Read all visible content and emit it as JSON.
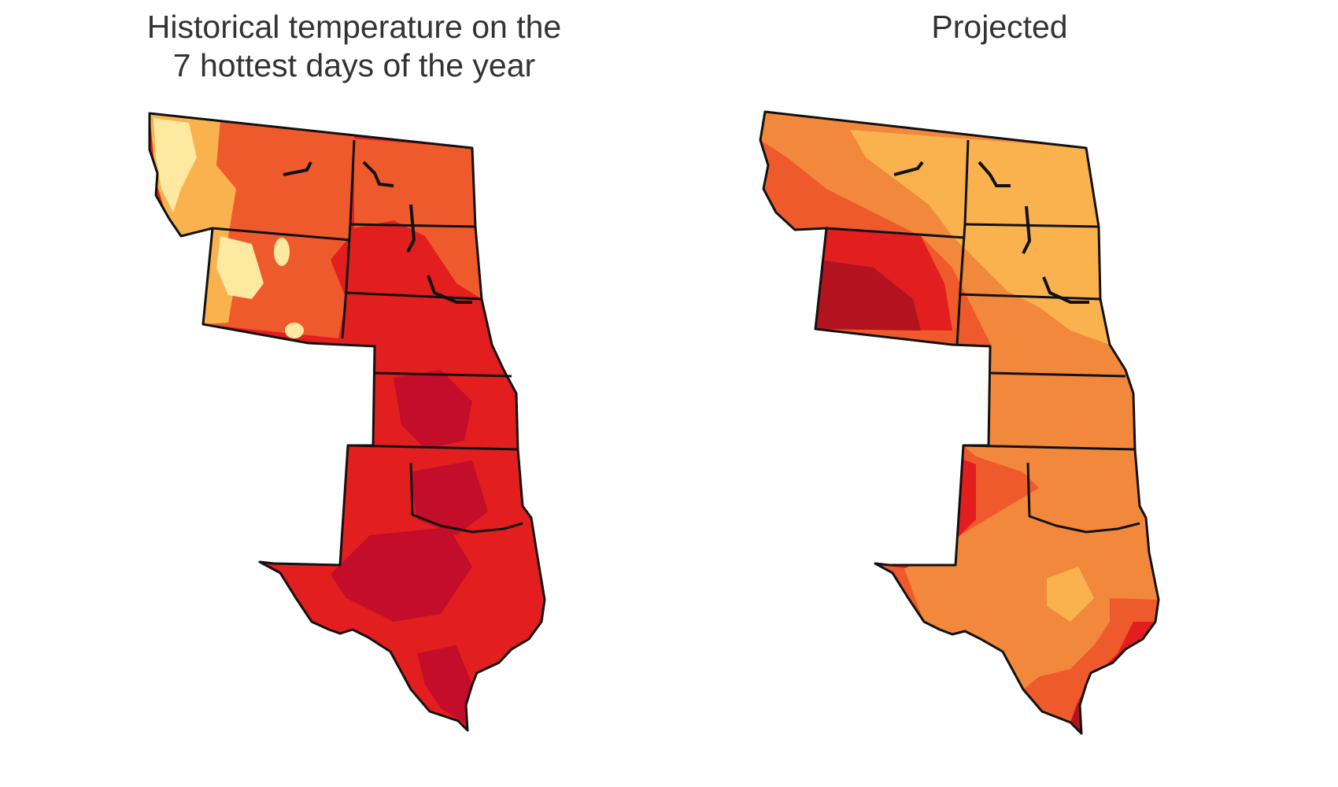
{
  "maps": [
    {
      "title_line1": "Historical temperature on the",
      "title_line2": "7 hottest days of the year"
    },
    {
      "title_line1": "Projected",
      "title_line2": ""
    }
  ],
  "colors": {
    "pale_yellow": "#fde9a0",
    "light_orange": "#f9b24e",
    "orange": "#f2883c",
    "red_orange": "#ee5a2c",
    "red": "#e21e1e",
    "dark_red": "#b3131f",
    "crimson": "#c40d2a",
    "border": "#111111"
  }
}
